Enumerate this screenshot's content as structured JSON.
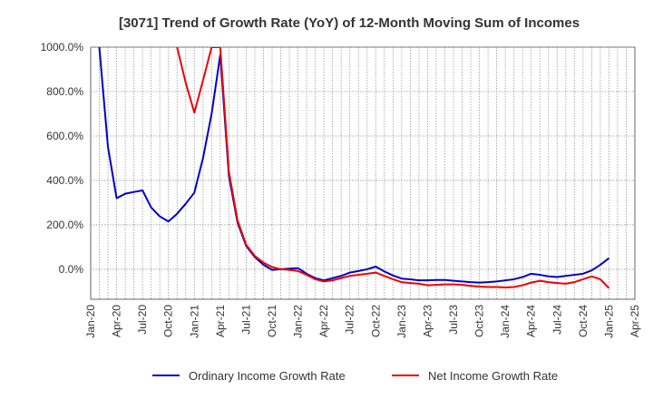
{
  "chart_data": {
    "type": "line",
    "title": "[3071]  Trend of Growth Rate (YoY) of 12-Month Moving Sum of Incomes",
    "xlabel": "",
    "ylabel": "",
    "x_ticks": [
      "Jan-20",
      "Apr-20",
      "Jul-20",
      "Oct-20",
      "Jan-21",
      "Apr-21",
      "Jul-21",
      "Oct-21",
      "Jan-22",
      "Apr-22",
      "Jul-22",
      "Oct-22",
      "Jan-23",
      "Apr-23",
      "Jul-23",
      "Oct-23",
      "Jan-24",
      "Apr-24",
      "Jul-24",
      "Oct-24",
      "Jan-25",
      "Apr-25"
    ],
    "y_ticks": [
      "1000.0%",
      "800.0%",
      "600.0%",
      "400.0%",
      "200.0%",
      "0.0%"
    ],
    "y_tick_values": [
      1000,
      800,
      600,
      400,
      200,
      0
    ],
    "ylim": [
      -135,
      1000
    ],
    "grid": true,
    "legend_position": "bottom",
    "series": [
      {
        "name": "Ordinary Income Growth Rate",
        "color": "#0000cc",
        "x": [
          "Feb-20",
          "Mar-20",
          "Apr-20",
          "May-20",
          "Jun-20",
          "Jul-20",
          "Aug-20",
          "Sep-20",
          "Oct-20",
          "Nov-20",
          "Dec-20",
          "Jan-21",
          "Feb-21",
          "Mar-21",
          "Apr-21",
          "May-21",
          "Jun-21",
          "Jul-21",
          "Aug-21",
          "Sep-21",
          "Oct-21",
          "Nov-21",
          "Dec-21",
          "Jan-22",
          "Feb-22",
          "Mar-22",
          "Apr-22",
          "May-22",
          "Jun-22",
          "Jul-22",
          "Aug-22",
          "Sep-22",
          "Oct-22",
          "Nov-22",
          "Dec-22",
          "Jan-23",
          "Feb-23",
          "Mar-23",
          "Apr-23",
          "May-23",
          "Jun-23",
          "Jul-23",
          "Aug-23",
          "Sep-23",
          "Oct-23",
          "Nov-23",
          "Dec-23",
          "Jan-24",
          "Feb-24",
          "Mar-24",
          "Apr-24",
          "May-24",
          "Jun-24",
          "Jul-24",
          "Aug-24",
          "Sep-24",
          "Oct-24",
          "Nov-24",
          "Dec-24",
          "Jan-25"
        ],
        "values": [
          1000,
          550,
          320,
          340,
          348,
          355,
          278,
          238,
          215,
          250,
          295,
          345,
          500,
          700,
          965,
          420,
          210,
          105,
          55,
          20,
          -3,
          0,
          3,
          5,
          -20,
          -40,
          -50,
          -40,
          -30,
          -15,
          -8,
          0,
          12,
          -10,
          -28,
          -42,
          -45,
          -50,
          -50,
          -48,
          -48,
          -52,
          -55,
          -58,
          -60,
          -58,
          -55,
          -50,
          -45,
          -35,
          -20,
          -25,
          -32,
          -35,
          -30,
          -25,
          -20,
          -5,
          20,
          50
        ]
      },
      {
        "name": "Net Income Growth Rate",
        "color": "#ee0000",
        "x": [
          "Nov-20",
          "Dec-20",
          "Jan-21",
          "Feb-21",
          "Mar-21",
          "Apr-21",
          "May-21",
          "Jun-21",
          "Jul-21",
          "Aug-21",
          "Sep-21",
          "Oct-21",
          "Nov-21",
          "Dec-21",
          "Jan-22",
          "Feb-22",
          "Mar-22",
          "Apr-22",
          "May-22",
          "Jun-22",
          "Jul-22",
          "Aug-22",
          "Sep-22",
          "Oct-22",
          "Nov-22",
          "Dec-22",
          "Jan-23",
          "Feb-23",
          "Mar-23",
          "Apr-23",
          "May-23",
          "Jun-23",
          "Jul-23",
          "Aug-23",
          "Sep-23",
          "Oct-23",
          "Nov-23",
          "Dec-23",
          "Jan-24",
          "Feb-24",
          "Mar-24",
          "Apr-24",
          "May-24",
          "Jun-24",
          "Jul-24",
          "Aug-24",
          "Sep-24",
          "Oct-24",
          "Nov-24",
          "Dec-24",
          "Jan-25"
        ],
        "values": [
          1000,
          840,
          705,
          850,
          1000,
          1000,
          440,
          220,
          110,
          60,
          30,
          10,
          0,
          -3,
          -8,
          -25,
          -45,
          -55,
          -50,
          -40,
          -30,
          -25,
          -20,
          -15,
          -30,
          -45,
          -58,
          -62,
          -65,
          -72,
          -70,
          -68,
          -68,
          -70,
          -75,
          -78,
          -80,
          -80,
          -82,
          -80,
          -72,
          -60,
          -52,
          -58,
          -62,
          -65,
          -58,
          -45,
          -32,
          -45,
          -85
        ]
      }
    ]
  }
}
